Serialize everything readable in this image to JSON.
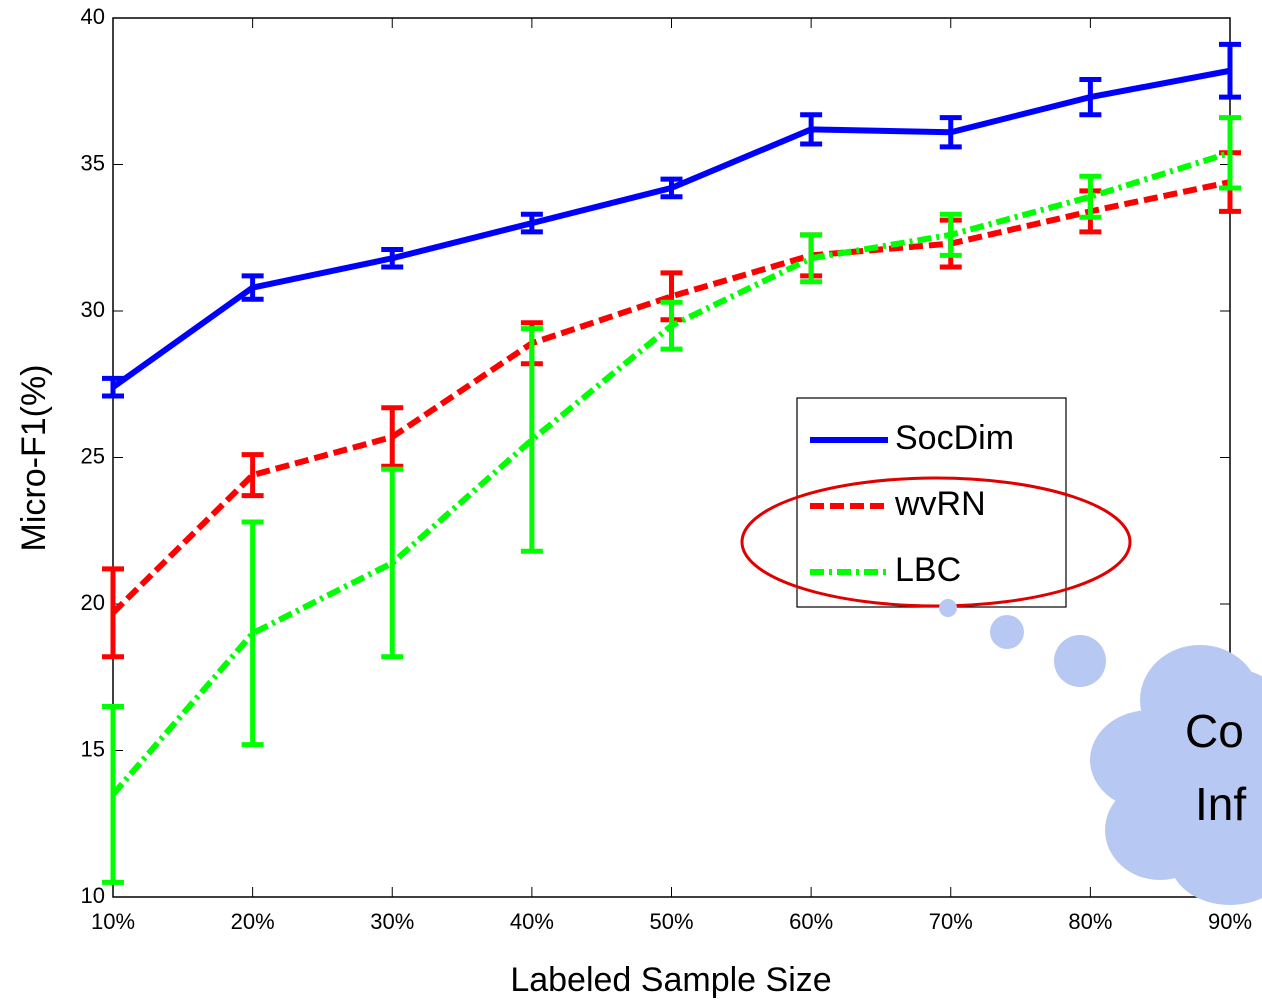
{
  "chart_data": {
    "type": "line",
    "xlabel": "Labeled Sample Size",
    "ylabel": "Micro-F1(%)",
    "categories": [
      "10%",
      "20%",
      "30%",
      "40%",
      "50%",
      "60%",
      "70%",
      "80%",
      "90%"
    ],
    "ylim": [
      10,
      40
    ],
    "yticks": [
      10,
      15,
      20,
      25,
      30,
      35,
      40
    ],
    "series": [
      {
        "name": "SocDim",
        "color": "#0000ff",
        "dash": "solid",
        "values": [
          27.4,
          30.8,
          31.8,
          33.0,
          34.2,
          36.2,
          36.1,
          37.3,
          38.2
        ],
        "errors": [
          0.3,
          0.4,
          0.3,
          0.3,
          0.3,
          0.5,
          0.5,
          0.6,
          0.9
        ]
      },
      {
        "name": "wvRN",
        "color": "#ff0000",
        "dash": "dashed",
        "values": [
          19.7,
          24.4,
          25.7,
          28.9,
          30.5,
          31.9,
          32.3,
          33.4,
          34.4
        ],
        "errors": [
          1.5,
          0.7,
          1.0,
          0.7,
          0.8,
          0.7,
          0.8,
          0.7,
          1.0
        ]
      },
      {
        "name": "LBC",
        "color": "#00ff00",
        "dash": "dashdot",
        "values": [
          13.5,
          19.0,
          21.4,
          25.6,
          29.5,
          31.8,
          32.6,
          33.9,
          35.4
        ],
        "errors": [
          3.0,
          3.8,
          3.2,
          3.8,
          0.8,
          0.8,
          0.7,
          0.7,
          1.2
        ]
      }
    ],
    "annotations": [
      "Co",
      "Inf"
    ]
  }
}
